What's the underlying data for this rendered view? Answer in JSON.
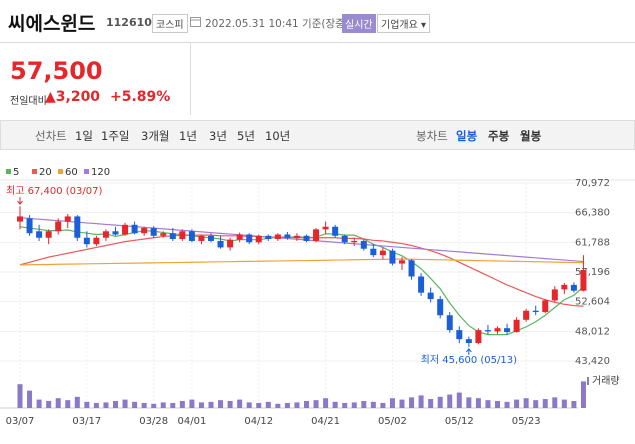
{
  "header": {
    "name": "씨에스윈드",
    "code": "112610",
    "market": "코스피",
    "timestamp": "2022.05.31 10:41 기준(장중)",
    "realtime": "실시간",
    "company_info": "기업개요 ▾"
  },
  "quote": {
    "price": "57,500",
    "change_caption": "전일대비",
    "change": "▲3,200",
    "change_pct": "+5.89%"
  },
  "tabs": {
    "line_chart": "선차트",
    "line_periods": [
      "1일",
      "1주일",
      "3개월",
      "1년",
      "3년",
      "5년",
      "10년"
    ],
    "candle_chart": "봉차트",
    "candle_periods": [
      "일봉",
      "주봉",
      "월봉"
    ]
  },
  "chart_data": {
    "type": "candlestick",
    "x": [
      "03/07",
      null,
      null,
      null,
      null,
      null,
      null,
      "03/17",
      null,
      null,
      null,
      null,
      null,
      null,
      "03/28",
      null,
      null,
      null,
      "04/01",
      null,
      null,
      null,
      null,
      null,
      null,
      "04/12",
      null,
      null,
      null,
      null,
      null,
      null,
      "04/21",
      null,
      null,
      null,
      null,
      null,
      null,
      "05/02",
      null,
      null,
      null,
      null,
      null,
      null,
      "05/12",
      null,
      null,
      null,
      null,
      null,
      null,
      "05/23",
      null,
      null,
      null,
      null,
      null,
      null
    ],
    "open": [
      65000,
      65500,
      63500,
      62500,
      63500,
      65000,
      65800,
      62500,
      61500,
      62500,
      63500,
      63000,
      64500,
      63200,
      64000,
      62800,
      63200,
      62300,
      63500,
      62000,
      62800,
      62000,
      61000,
      62200,
      63000,
      61800,
      62800,
      62300,
      63000,
      62500,
      62800,
      62000,
      63800,
      64200,
      62800,
      61800,
      62000,
      60800,
      59800,
      60500,
      58500,
      59000,
      56500,
      54000,
      53000,
      50500,
      48200,
      46800,
      46200,
      48200,
      48000,
      48500,
      47900,
      49800,
      51200,
      51000,
      52800,
      54500,
      55200,
      54300
    ],
    "high": [
      67400,
      66000,
      64500,
      63800,
      65500,
      66200,
      66000,
      63500,
      62800,
      63800,
      64200,
      64800,
      65000,
      64200,
      64300,
      63500,
      64000,
      63800,
      63800,
      63000,
      63200,
      62800,
      62500,
      63300,
      63200,
      63000,
      63000,
      63200,
      63400,
      63200,
      63000,
      64000,
      65000,
      64500,
      63000,
      62500,
      62300,
      61500,
      61000,
      60800,
      59500,
      59200,
      57000,
      54800,
      53500,
      51000,
      48800,
      47200,
      48500,
      49000,
      48800,
      49200,
      50200,
      51500,
      52000,
      53000,
      55000,
      55500,
      55600,
      59800
    ],
    "low": [
      63800,
      62800,
      62000,
      61500,
      63000,
      64000,
      62000,
      61000,
      61200,
      62000,
      62800,
      62800,
      63000,
      62800,
      62500,
      62500,
      62000,
      62000,
      61800,
      61500,
      61800,
      60800,
      60500,
      61800,
      61500,
      61500,
      62000,
      62000,
      62200,
      62000,
      61800,
      61800,
      63000,
      62500,
      61500,
      61200,
      60500,
      59500,
      59200,
      58200,
      57500,
      56000,
      53500,
      52500,
      50000,
      47800,
      46200,
      45600,
      46000,
      47500,
      47600,
      47500,
      47800,
      49500,
      50500,
      50800,
      52500,
      53800,
      54000,
      54200
    ],
    "close": [
      65800,
      63200,
      62500,
      63500,
      65000,
      65800,
      62500,
      61500,
      62500,
      63500,
      63000,
      64500,
      63200,
      64000,
      62800,
      63200,
      62300,
      63500,
      62000,
      62800,
      62000,
      61000,
      62200,
      63000,
      61800,
      62800,
      62300,
      63000,
      62500,
      62800,
      62000,
      63800,
      64200,
      62800,
      61800,
      62000,
      60800,
      59800,
      60500,
      58500,
      59000,
      56500,
      54000,
      53000,
      50500,
      48200,
      46800,
      46200,
      48200,
      48000,
      48500,
      47900,
      49800,
      51200,
      51000,
      52800,
      54500,
      55200,
      54300,
      57500
    ],
    "up_color": "#e5262b",
    "down_color": "#1a5fd6",
    "series": [
      {
        "name": "5",
        "color": "#5ab55e",
        "values": [
          64200,
          64000,
          63800,
          63600,
          63600,
          63700,
          63400,
          63200,
          63000,
          63100,
          62700,
          63000,
          63300,
          63600,
          63500,
          63300,
          63100,
          63000,
          62800,
          62600,
          62500,
          62300,
          62000,
          62200,
          62200,
          62200,
          62400,
          62600,
          62500,
          62700,
          62500,
          62600,
          63100,
          63100,
          62900,
          62900,
          62300,
          61500,
          61000,
          60300,
          59700,
          58800,
          57700,
          56200,
          54600,
          52400,
          50500,
          48900,
          47900,
          47500,
          47500,
          47500,
          48100,
          48700,
          49500,
          50500,
          51700,
          52900,
          53600,
          54900
        ]
      },
      {
        "name": "20",
        "color": "#e85a5a",
        "values": [
          58300,
          58700,
          59100,
          59500,
          59800,
          60100,
          60400,
          60700,
          61000,
          61300,
          61600,
          61900,
          62100,
          62300,
          62500,
          62700,
          62800,
          62900,
          62900,
          62900,
          62900,
          62800,
          62800,
          62800,
          62700,
          62700,
          62600,
          62600,
          62600,
          62500,
          62500,
          62500,
          62500,
          62500,
          62400,
          62400,
          62300,
          62100,
          62000,
          61800,
          61600,
          61300,
          60900,
          60500,
          60000,
          59400,
          58700,
          58000,
          57300,
          56600,
          55900,
          55200,
          54600,
          54000,
          53400,
          52900,
          52500,
          52200,
          52000,
          51900
        ]
      },
      {
        "name": "60",
        "color": "#f0a23a",
        "values": [
          58300,
          58320,
          58340,
          58360,
          58390,
          58410,
          58430,
          58460,
          58480,
          58500,
          58520,
          58550,
          58570,
          58590,
          58610,
          58640,
          58660,
          58680,
          58700,
          58730,
          58750,
          58770,
          58790,
          58820,
          58840,
          58860,
          58880,
          58910,
          58930,
          58950,
          58970,
          59000,
          59020,
          59040,
          59060,
          59090,
          59110,
          59130,
          59150,
          59170,
          59200,
          59170,
          59140,
          59110,
          59080,
          59050,
          59020,
          58990,
          58960,
          58930,
          58900,
          58870,
          58840,
          58810,
          58780,
          58750,
          58720,
          58690,
          58660,
          58630
        ]
      },
      {
        "name": "120",
        "color": "#a57ad8",
        "values": [
          65600,
          65480,
          65370,
          65250,
          65140,
          65020,
          64910,
          64790,
          64680,
          64560,
          64450,
          64330,
          64220,
          64100,
          63990,
          63870,
          63760,
          63640,
          63530,
          63410,
          63300,
          63180,
          63070,
          62950,
          62840,
          62720,
          62610,
          62490,
          62380,
          62260,
          62150,
          62030,
          61920,
          61800,
          61690,
          61570,
          61460,
          61340,
          61230,
          61110,
          61000,
          60880,
          60770,
          60650,
          60540,
          60420,
          60310,
          60190,
          60080,
          59960,
          59850,
          59730,
          59620,
          59500,
          59390,
          59270,
          59160,
          59040,
          58930,
          58810
        ]
      }
    ],
    "volume": {
      "name": "거래량",
      "color": "#8a78c8",
      "values": [
        85,
        62,
        30,
        25,
        35,
        28,
        40,
        22,
        18,
        20,
        25,
        30,
        22,
        18,
        15,
        20,
        18,
        25,
        30,
        20,
        22,
        28,
        25,
        30,
        20,
        18,
        22,
        15,
        18,
        20,
        25,
        28,
        35,
        22,
        18,
        20,
        25,
        22,
        18,
        35,
        30,
        38,
        45,
        32,
        40,
        48,
        55,
        38,
        35,
        28,
        25,
        22,
        30,
        35,
        28,
        32,
        38,
        30,
        25,
        95
      ],
      "vlim": [
        0,
        100
      ]
    },
    "ylim": [
      43420,
      70972
    ],
    "yticks": [
      {
        "value": 43420,
        "label": "43,420"
      },
      {
        "value": 48012,
        "label": "48,012"
      },
      {
        "value": 52604,
        "label": "52,604"
      },
      {
        "value": 57196,
        "label": "57,196"
      },
      {
        "value": 61788,
        "label": "61,788"
      },
      {
        "value": 66380,
        "label": "66,380"
      },
      {
        "value": 70972,
        "label": "70,972"
      }
    ],
    "annotations": [
      {
        "label": "최고 67,400 (03/07)",
        "value": 67400,
        "x": "03/07",
        "color": "#e5262b"
      },
      {
        "label": "최저 45,600 (05/13)",
        "value": 45600,
        "x": "05/13",
        "color": "#1a5fd6"
      }
    ],
    "grid": true
  }
}
